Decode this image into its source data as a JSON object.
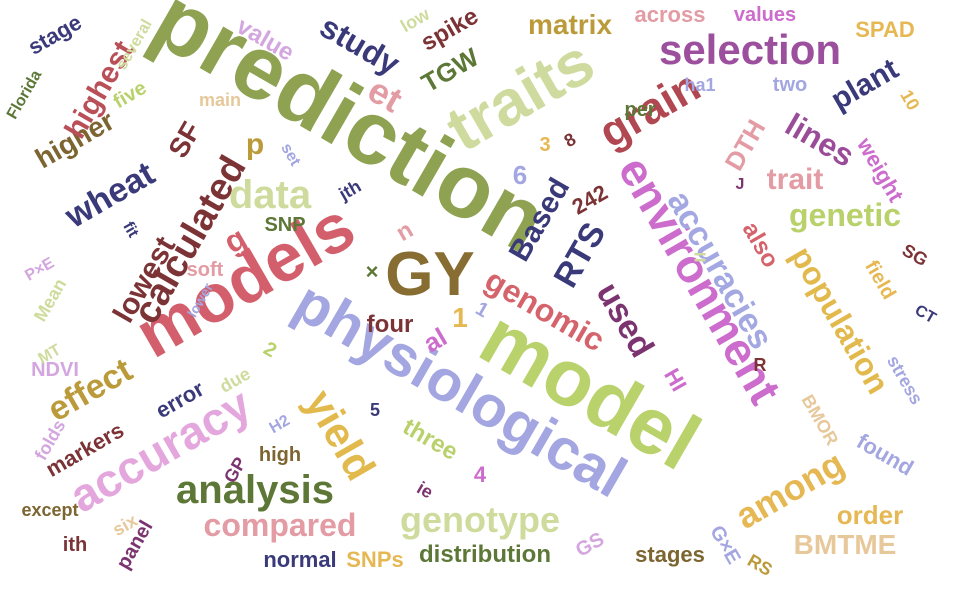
{
  "words": [
    {
      "text": "prediction",
      "color": "#8ea252",
      "rot": 30
    },
    {
      "text": "model",
      "color": "#b9d26c",
      "rot": 30
    },
    {
      "text": "models",
      "color": "#d45f6c",
      "rot": -30
    },
    {
      "text": "physiological",
      "color": "#a3a6e0",
      "rot": 30
    },
    {
      "text": "environment",
      "color": "#cc6ccc",
      "rot": 60
    },
    {
      "text": "traits",
      "color": "#cfdb9e",
      "rot": -30
    },
    {
      "text": "GY",
      "color": "#876d31",
      "rot": 0
    },
    {
      "text": "accuracy",
      "color": "#e4a7dd",
      "rot": -30
    },
    {
      "text": "yield",
      "color": "#e2b94c",
      "rot": 60
    },
    {
      "text": "selection",
      "color": "#9b4f9c",
      "rot": 0
    },
    {
      "text": "grain",
      "color": "#b14751",
      "rot": -30
    },
    {
      "text": "accuracies",
      "color": "#a4a8e2",
      "rot": 60
    },
    {
      "text": "analysis",
      "color": "#5d7737",
      "rot": 0
    },
    {
      "text": "calculated",
      "color": "#7c3336",
      "rot": -60
    },
    {
      "text": "data",
      "color": "#cedb9c",
      "rot": 0
    },
    {
      "text": "genomic",
      "color": "#d5636b",
      "rot": 30
    },
    {
      "text": "compared",
      "color": "#e39ba4",
      "rot": 0
    },
    {
      "text": "genotype",
      "color": "#cedb9c",
      "rot": 0
    },
    {
      "text": "population",
      "color": "#e2b94c",
      "rot": 60
    },
    {
      "text": "genetic",
      "color": "#b8d16b",
      "rot": 0
    },
    {
      "text": "study",
      "color": "#3a3a7a",
      "rot": 30
    },
    {
      "text": "wheat",
      "color": "#3a3a7a",
      "rot": -30
    },
    {
      "text": "among",
      "color": "#e6b853",
      "rot": -30
    },
    {
      "text": "effect",
      "color": "#bb9a3a",
      "rot": -30
    },
    {
      "text": "lines",
      "color": "#9a4c99",
      "rot": 30
    },
    {
      "text": "plant",
      "color": "#3a3a7a",
      "rot": -30
    },
    {
      "text": "RTS",
      "color": "#3a3a7a",
      "rot": -60
    },
    {
      "text": "used",
      "color": "#7b3470",
      "rot": 60
    },
    {
      "text": "Based",
      "color": "#3a3a7a",
      "rot": -60
    },
    {
      "text": "trait",
      "color": "#e39ba4",
      "rot": 0
    },
    {
      "text": "higher",
      "color": "#7c6530",
      "rot": -30
    },
    {
      "text": "highest",
      "color": "#b94f57",
      "rot": -60
    },
    {
      "text": "lowest",
      "color": "#7c3336",
      "rot": -60
    },
    {
      "text": "matrix",
      "color": "#bb9a3a",
      "rot": 0
    },
    {
      "text": "TGW",
      "color": "#5d7737",
      "rot": -30
    },
    {
      "text": "DTH",
      "color": "#e39ba4",
      "rot": -60
    },
    {
      "text": "BMTME",
      "color": "#e6c89a",
      "rot": 0
    },
    {
      "text": "distribution",
      "color": "#5d7737",
      "rot": 0
    },
    {
      "text": "order",
      "color": "#e6b853",
      "rot": 0
    },
    {
      "text": "three",
      "color": "#b8d16b",
      "rot": 30
    },
    {
      "text": "value",
      "color": "#d4a6df",
      "rot": 30
    },
    {
      "text": "weight",
      "color": "#cc6ccc",
      "rot": 60
    },
    {
      "text": "found",
      "color": "#a3a6e0",
      "rot": 30
    },
    {
      "text": "also",
      "color": "#d5636b",
      "rot": 60
    },
    {
      "text": "across",
      "color": "#e39ba4",
      "rot": 0
    },
    {
      "text": "values",
      "color": "#cc6ccc",
      "rot": 0
    },
    {
      "text": "spike",
      "color": "#7c3336",
      "rot": -30
    },
    {
      "text": "SPAD",
      "color": "#e6b853",
      "rot": 0
    },
    {
      "text": "SF",
      "color": "#7c3336",
      "rot": -60
    },
    {
      "text": "et",
      "color": "#e39ba4",
      "rot": 30
    },
    {
      "text": "al",
      "color": "#cc6ccc",
      "rot": -30
    },
    {
      "text": "HI",
      "color": "#cc6ccc",
      "rot": 60
    },
    {
      "text": "p",
      "color": "#bb9a3a",
      "rot": 0
    },
    {
      "text": "g",
      "color": "#d45f6c",
      "rot": -30
    },
    {
      "text": "four",
      "color": "#7c3336",
      "rot": 0
    },
    {
      "text": "stage",
      "color": "#3a3a7a",
      "rot": -30
    },
    {
      "text": "stages",
      "color": "#7c6530",
      "rot": 0
    },
    {
      "text": "markers",
      "color": "#7c3336",
      "rot": -30
    },
    {
      "text": "error",
      "color": "#3a3a7a",
      "rot": -30
    },
    {
      "text": "normal",
      "color": "#3a3a7a",
      "rot": 0
    },
    {
      "text": "SNPs",
      "color": "#e6b853",
      "rot": 0
    },
    {
      "text": "SNP",
      "color": "#5d7737",
      "rot": 0
    },
    {
      "text": "soft",
      "color": "#e39ba4",
      "rot": 0
    },
    {
      "text": "high",
      "color": "#7c6530",
      "rot": 0
    },
    {
      "text": "five",
      "color": "#b8d16b",
      "rot": -30
    },
    {
      "text": "NDVI",
      "color": "#d4a6df",
      "rot": 0
    },
    {
      "text": "Mean",
      "color": "#cedb9c",
      "rot": -60
    },
    {
      "text": "panel",
      "color": "#7b3470",
      "rot": -60
    },
    {
      "text": "folds",
      "color": "#d4a6df",
      "rot": -60
    },
    {
      "text": "six",
      "color": "#e6c89a",
      "rot": -30
    },
    {
      "text": "ith",
      "color": "#7c3336",
      "rot": 0
    },
    {
      "text": "jth",
      "color": "#3a3a7a",
      "rot": -30
    },
    {
      "text": "ie",
      "color": "#7b3470",
      "rot": 30
    },
    {
      "text": "low",
      "color": "#cedb9c",
      "rot": -30
    },
    {
      "text": "several",
      "color": "#cedb9c",
      "rot": -60
    },
    {
      "text": "Florida",
      "color": "#5d7737",
      "rot": -60
    },
    {
      "text": "two",
      "color": "#a3a6e0",
      "rot": 0
    },
    {
      "text": "per",
      "color": "#5d7737",
      "rot": 0
    },
    {
      "text": "ha1",
      "color": "#a3a6e0",
      "rot": 0
    },
    {
      "text": "10",
      "color": "#e6b853",
      "rot": 60
    },
    {
      "text": "SG",
      "color": "#7c3336",
      "rot": 30
    },
    {
      "text": "field",
      "color": "#e6b853",
      "rot": 60
    },
    {
      "text": "CT",
      "color": "#3a3a7a",
      "rot": 30
    },
    {
      "text": "stress",
      "color": "#a3a6e0",
      "rot": 60
    },
    {
      "text": "BMOR",
      "color": "#e6c89a",
      "rot": 60
    },
    {
      "text": "G×E",
      "color": "#a3a6e0",
      "rot": 60
    },
    {
      "text": "GS",
      "color": "#d4a6df",
      "rot": -30
    },
    {
      "text": "RS",
      "color": "#bb9a3a",
      "rot": 30
    },
    {
      "text": "except",
      "color": "#7c6530",
      "rot": 0
    },
    {
      "text": "GP",
      "color": "#7b3470",
      "rot": -60
    },
    {
      "text": "H2",
      "color": "#a3a6e0",
      "rot": -30
    },
    {
      "text": "due",
      "color": "#cedb9c",
      "rot": -30
    },
    {
      "text": "MT",
      "color": "#cedb9c",
      "rot": -30
    },
    {
      "text": "P×E",
      "color": "#d4a6df",
      "rot": -30
    },
    {
      "text": "lower",
      "color": "#a3a6e0",
      "rot": -60
    },
    {
      "text": "main",
      "color": "#e6c89a",
      "rot": 0
    },
    {
      "text": "set",
      "color": "#a3a6e0",
      "rot": 60
    },
    {
      "text": "fit",
      "color": "#3a3a7a",
      "rot": 60
    },
    {
      "text": "242",
      "color": "#7c3336",
      "rot": -30
    },
    {
      "text": "R",
      "color": "#7c3336",
      "rot": 0
    },
    {
      "text": "J",
      "color": "#7b3470",
      "rot": 0
    },
    {
      "text": "6",
      "color": "#a3a6e0",
      "rot": 0
    },
    {
      "text": "3",
      "color": "#e6b853",
      "rot": 0
    },
    {
      "text": "1",
      "color": "#e6b853",
      "rot": 0
    },
    {
      "text": "1",
      "color": "#a3a6e0",
      "rot": 30
    },
    {
      "text": "2",
      "color": "#b8d16b",
      "rot": 30
    },
    {
      "text": "4",
      "color": "#cc6ccc",
      "rot": 0
    },
    {
      "text": "5",
      "color": "#3a3a7a",
      "rot": 0
    },
    {
      "text": "8",
      "color": "#7c3336",
      "rot": -30
    },
    {
      "text": "n",
      "color": "#e39ba4",
      "rot": -30
    },
    {
      "text": "×",
      "color": "#5d7737",
      "rot": 0
    },
    {
      "text": "=",
      "color": "#cedb9c",
      "rot": 0
    },
    {
      "text": "*",
      "color": "#3a3a7a",
      "rot": 0
    }
  ]
}
